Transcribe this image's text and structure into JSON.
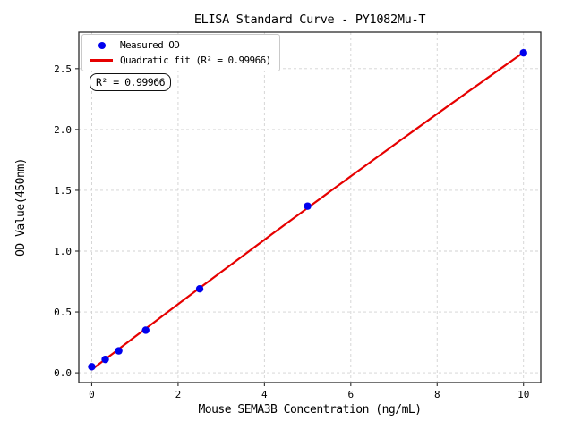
{
  "chart_data": {
    "type": "scatter",
    "title": "ELISA Standard Curve - PY1082Mu-T",
    "xlabel": "Mouse SEMA3B Concentration (ng/mL)",
    "ylabel": "OD Value(450nm)",
    "x": [
      0,
      0.3125,
      0.625,
      1.25,
      2.5,
      5,
      10
    ],
    "series": [
      {
        "name": "Measured OD",
        "type": "scatter",
        "color": "#0000ee",
        "values": [
          0.05,
          0.11,
          0.18,
          0.35,
          0.69,
          1.37,
          2.63
        ]
      },
      {
        "name": "Quadratic fit (R² = 0.99966)",
        "type": "quadratic-fit-line",
        "color": "#e60000"
      }
    ],
    "annotation": "R² = 0.99966",
    "r_squared": 0.99966,
    "xticks": [
      0,
      2,
      4,
      6,
      8,
      10
    ],
    "yticks": [
      0.0,
      0.5,
      1.0,
      1.5,
      2.0,
      2.5
    ],
    "xlim": [
      -0.3,
      10.4
    ],
    "ylim": [
      -0.08,
      2.8
    ],
    "grid": true,
    "legend_position": "upper left",
    "colors": {
      "background": "#ffffff",
      "grid": "#d2d2d2",
      "frame": "#2b2b2b",
      "points": "#0000ee",
      "fit_line": "#e60000"
    }
  }
}
